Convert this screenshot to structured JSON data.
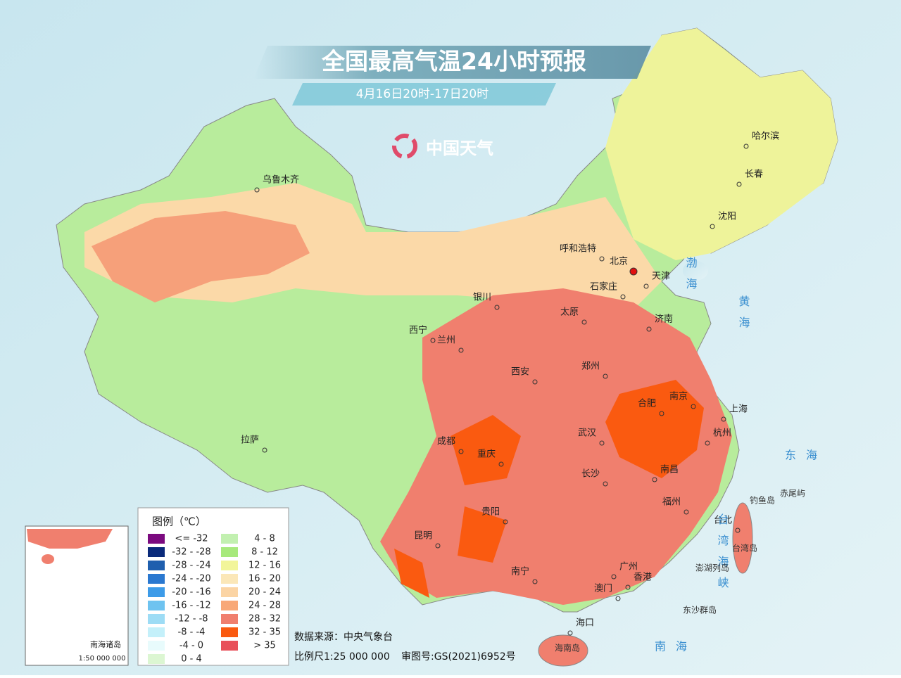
{
  "header": {
    "title": "全国最高气温24小时预报",
    "subtitle": "4月16日20时-17日20时",
    "brand": "中国天气"
  },
  "cities": [
    "乌鲁木齐",
    "哈尔滨",
    "长春",
    "沈阳",
    "呼和浩特",
    "北京",
    "天津",
    "石家庄",
    "银川",
    "太原",
    "济南",
    "西宁",
    "兰州",
    "西安",
    "郑州",
    "合肥",
    "南京",
    "上海",
    "拉萨",
    "成都",
    "武汉",
    "杭州",
    "重庆",
    "长沙",
    "南昌",
    "贵阳",
    "福州",
    "台北",
    "昆明",
    "广州",
    "香港",
    "南宁",
    "澳门",
    "海口"
  ],
  "seas": [
    "渤海",
    "黄海",
    "东海",
    "台湾海峡",
    "南海"
  ],
  "islands": [
    "钓鱼岛",
    "赤尾屿",
    "台湾岛",
    "澎湖列岛",
    "东沙群岛",
    "海南岛"
  ],
  "legend": {
    "title": "图例（℃）",
    "items": [
      {
        "label": "<= -32",
        "color": "#7b0a7f"
      },
      {
        "label": "-32 - -28",
        "color": "#0a2a7a"
      },
      {
        "label": "-28 - -24",
        "color": "#1f5fae"
      },
      {
        "label": "-24 - -20",
        "color": "#2a78d0"
      },
      {
        "label": "-20 - -16",
        "color": "#3d9be8"
      },
      {
        "label": "-16 - -12",
        "color": "#6ec3f0"
      },
      {
        "label": "-12 - -8",
        "color": "#9ddcf5"
      },
      {
        "label": "-8 - -4",
        "color": "#c4f0fa"
      },
      {
        "label": "-4 - 0",
        "color": "#e8fbfc"
      },
      {
        "label": "0 - 4",
        "color": "#dcf6d2"
      },
      {
        "label": "4 - 8",
        "color": "#c2f0b0"
      },
      {
        "label": "8 - 12",
        "color": "#a7e97c"
      },
      {
        "label": "12 - 16",
        "color": "#f2f59a"
      },
      {
        "label": "16 - 20",
        "color": "#fbe7b8"
      },
      {
        "label": "20 - 24",
        "color": "#fbd4a4"
      },
      {
        "label": "24 - 28",
        "color": "#f8a878"
      },
      {
        "label": "28 - 32",
        "color": "#f07f6e"
      },
      {
        "label": "32 - 35",
        "color": "#fa5a10"
      },
      {
        "label": "> 35",
        "color": "#e8505a"
      }
    ]
  },
  "footer": {
    "source": "数据来源：中央气象台",
    "scale": "比例尺1:25 000 000",
    "approval": "审图号:GS(2021)6952号"
  },
  "inset": {
    "title": "南海诸岛",
    "scale": "1:50 000 000"
  }
}
